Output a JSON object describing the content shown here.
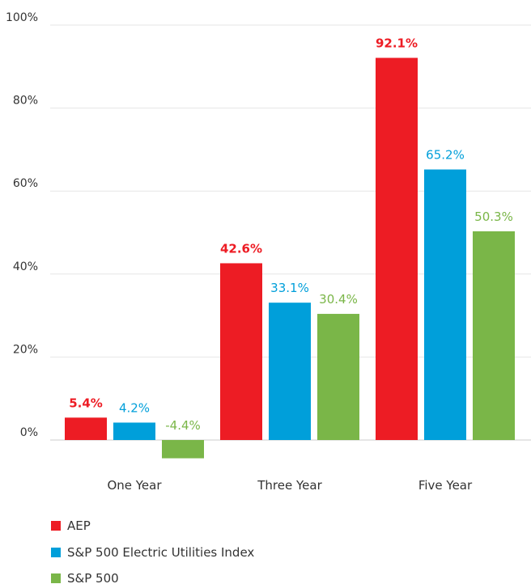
{
  "chart_data": {
    "type": "bar",
    "categories": [
      "One Year",
      "Three Year",
      "Five Year"
    ],
    "series": [
      {
        "name": "AEP",
        "color": "#ed1c24",
        "values": [
          5.4,
          42.6,
          92.1
        ],
        "labels": [
          "5.4%",
          "42.6%",
          "92.1%"
        ],
        "label_bold": true
      },
      {
        "name": "S&P 500 Electric Utilities Index",
        "color": "#009fda",
        "values": [
          4.2,
          33.1,
          65.2
        ],
        "labels": [
          "4.2%",
          "33.1%",
          "65.2%"
        ],
        "label_bold": false
      },
      {
        "name": "S&P 500",
        "color": "#7ab648",
        "values": [
          -4.4,
          30.4,
          50.3
        ],
        "labels": [
          "-4.4%",
          "30.4%",
          "50.3%"
        ],
        "label_bold": false
      }
    ],
    "yticks": [
      {
        "value": 0,
        "label": "0%"
      },
      {
        "value": 20,
        "label": "20%"
      },
      {
        "value": 40,
        "label": "40%"
      },
      {
        "value": 60,
        "label": "60%"
      },
      {
        "value": 80,
        "label": "80%"
      },
      {
        "value": 100,
        "label": "100%"
      }
    ],
    "ylim": [
      -5,
      100
    ],
    "grid": true,
    "legend": "bottom-left",
    "title": "",
    "xlabel": "",
    "ylabel": ""
  }
}
